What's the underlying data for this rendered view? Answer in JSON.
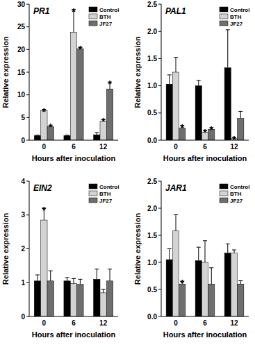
{
  "chart_data": [
    {
      "type": "bar",
      "title": "PR1",
      "x_label": "Hours after inoculation",
      "y_label": "Relative expression",
      "categories": [
        "0",
        "6",
        "12"
      ],
      "ylim": [
        0,
        30
      ],
      "yticks": [
        0,
        5,
        10,
        15,
        20,
        25,
        30
      ],
      "legend": "upper right",
      "series": [
        {
          "name": "Control",
          "color": "#000000",
          "values": [
            1.0,
            1.0,
            1.2
          ],
          "errors": [
            0.1,
            0.1,
            0.5
          ],
          "annotations": [
            null,
            null,
            null
          ]
        },
        {
          "name": "BTH",
          "color": "#d3d3d3",
          "values": [
            6.5,
            23.8,
            4.2
          ],
          "errors": [
            0.3,
            5.0,
            0.4
          ],
          "annotations": [
            "*",
            "*",
            "*"
          ]
        },
        {
          "name": "JF27",
          "color": "#6e6e6e",
          "values": [
            3.0,
            20.2,
            11.3
          ],
          "errors": [
            0.3,
            0.3,
            1.5
          ],
          "annotations": [
            "*",
            "*",
            "*"
          ]
        }
      ]
    },
    {
      "type": "bar",
      "title": "PAL1",
      "x_label": "Hours after inoculation",
      "y_label": "Relative expression",
      "categories": [
        "0",
        "6",
        "12"
      ],
      "ylim": [
        0,
        2.5
      ],
      "yticks": [
        {
          "value": 0,
          "label": "0.0"
        },
        {
          "value": 0.5,
          "label": "0.5"
        },
        {
          "value": 1,
          "label": "1.0"
        },
        {
          "value": 1.5,
          "label": "1.5"
        },
        {
          "value": 2,
          "label": "2.0"
        },
        {
          "value": 2.5,
          "label": "2.5"
        }
      ],
      "legend": "upper right",
      "series": [
        {
          "name": "Control",
          "color": "#000000",
          "values": [
            1.03,
            1.0,
            1.33
          ],
          "errors": [
            0.17,
            0.1,
            0.7
          ],
          "annotations": [
            null,
            null,
            null
          ]
        },
        {
          "name": "BTH",
          "color": "#d3d3d3",
          "values": [
            1.25,
            0.15,
            0.03
          ],
          "errors": [
            0.27,
            0.03,
            0.02
          ],
          "annotations": [
            null,
            "*",
            "*"
          ]
        },
        {
          "name": "JF27",
          "color": "#6e6e6e",
          "values": [
            0.22,
            0.2,
            0.4
          ],
          "errors": [
            0.05,
            0.03,
            0.13
          ],
          "annotations": [
            "*",
            "*",
            null
          ]
        }
      ]
    },
    {
      "type": "bar",
      "title": "EIN2",
      "x_label": "Hours after inoculation",
      "y_label": "Relative expression",
      "categories": [
        "0",
        "6",
        "12"
      ],
      "ylim": [
        0,
        4
      ],
      "yticks": [
        0,
        1,
        2,
        3,
        4
      ],
      "legend": "upper right",
      "series": [
        {
          "name": "Control",
          "color": "#000000",
          "values": [
            1.05,
            1.05,
            1.1
          ],
          "errors": [
            0.18,
            0.1,
            0.3
          ],
          "annotations": [
            null,
            null,
            null
          ]
        },
        {
          "name": "BTH",
          "color": "#d3d3d3",
          "values": [
            2.85,
            0.97,
            0.7
          ],
          "errors": [
            0.35,
            0.15,
            0.1
          ],
          "annotations": [
            "*",
            null,
            null
          ]
        },
        {
          "name": "JF27",
          "color": "#6e6e6e",
          "values": [
            1.05,
            0.95,
            1.05
          ],
          "errors": [
            0.3,
            0.15,
            0.35
          ],
          "annotations": [
            null,
            null,
            null
          ]
        }
      ]
    },
    {
      "type": "bar",
      "title": "JAR1",
      "x_label": "Hours after inoculation",
      "y_label": "Relative expression",
      "categories": [
        "0",
        "6",
        "12"
      ],
      "ylim": [
        0,
        2.5
      ],
      "yticks": [
        {
          "value": 0,
          "label": "0.0"
        },
        {
          "value": 0.5,
          "label": "0.5"
        },
        {
          "value": 1,
          "label": "1.0"
        },
        {
          "value": 1.5,
          "label": "1.5"
        },
        {
          "value": 2,
          "label": "2.0"
        },
        {
          "value": 2.5,
          "label": "2.5"
        }
      ],
      "legend": "upper right",
      "series": [
        {
          "name": "Control",
          "color": "#000000",
          "values": [
            1.05,
            1.03,
            1.17
          ],
          "errors": [
            0.2,
            0.25,
            0.17
          ],
          "annotations": [
            null,
            null,
            null
          ]
        },
        {
          "name": "BTH",
          "color": "#d3d3d3",
          "values": [
            1.58,
            1.0,
            1.17
          ],
          "errors": [
            0.3,
            0.4,
            0.06
          ],
          "annotations": [
            null,
            null,
            null
          ]
        },
        {
          "name": "JF27",
          "color": "#6e6e6e",
          "values": [
            0.6,
            0.6,
            0.6
          ],
          "errors": [
            0.05,
            0.3,
            0.06
          ],
          "annotations": [
            "*",
            null,
            null
          ]
        }
      ]
    }
  ]
}
